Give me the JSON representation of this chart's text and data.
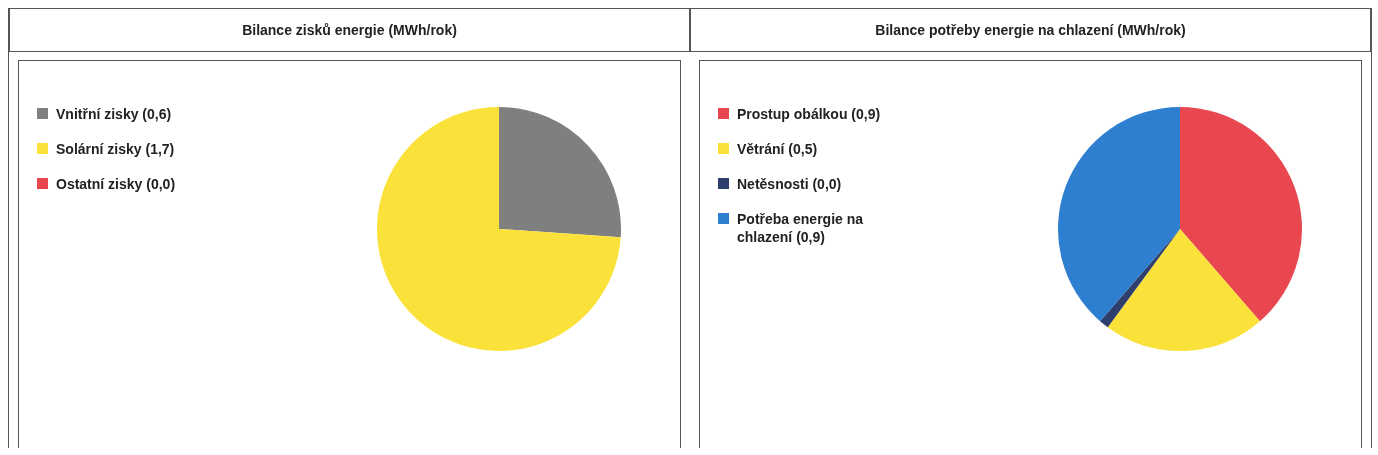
{
  "chart_data": [
    {
      "type": "pie",
      "title": "Bilance zisků energie (MWh/rok)",
      "categories": [
        "Vnitřní zisky (0,6)",
        "Solární zisky (1,7)",
        "Ostatní zisky (0,0)"
      ],
      "values": [
        0.6,
        1.7,
        0.0
      ],
      "colors": [
        "#7f7f7f",
        "#fbe23a",
        "#e8474f"
      ],
      "legend": "top left"
    },
    {
      "type": "pie",
      "title": "Bilance potřeby energie na chlazení (MWh/rok)",
      "categories": [
        "Prostup obálkou (0,9)",
        "Větrání (0,5)",
        "Netěsnosti (0,0)",
        "Potřeba energie na chlazení (0,9)"
      ],
      "values": [
        0.9,
        0.5,
        0.03,
        0.9
      ],
      "colors": [
        "#e8474f",
        "#fbe23a",
        "#2e3f6e",
        "#2e7fd0"
      ],
      "legend": "top left"
    }
  ]
}
